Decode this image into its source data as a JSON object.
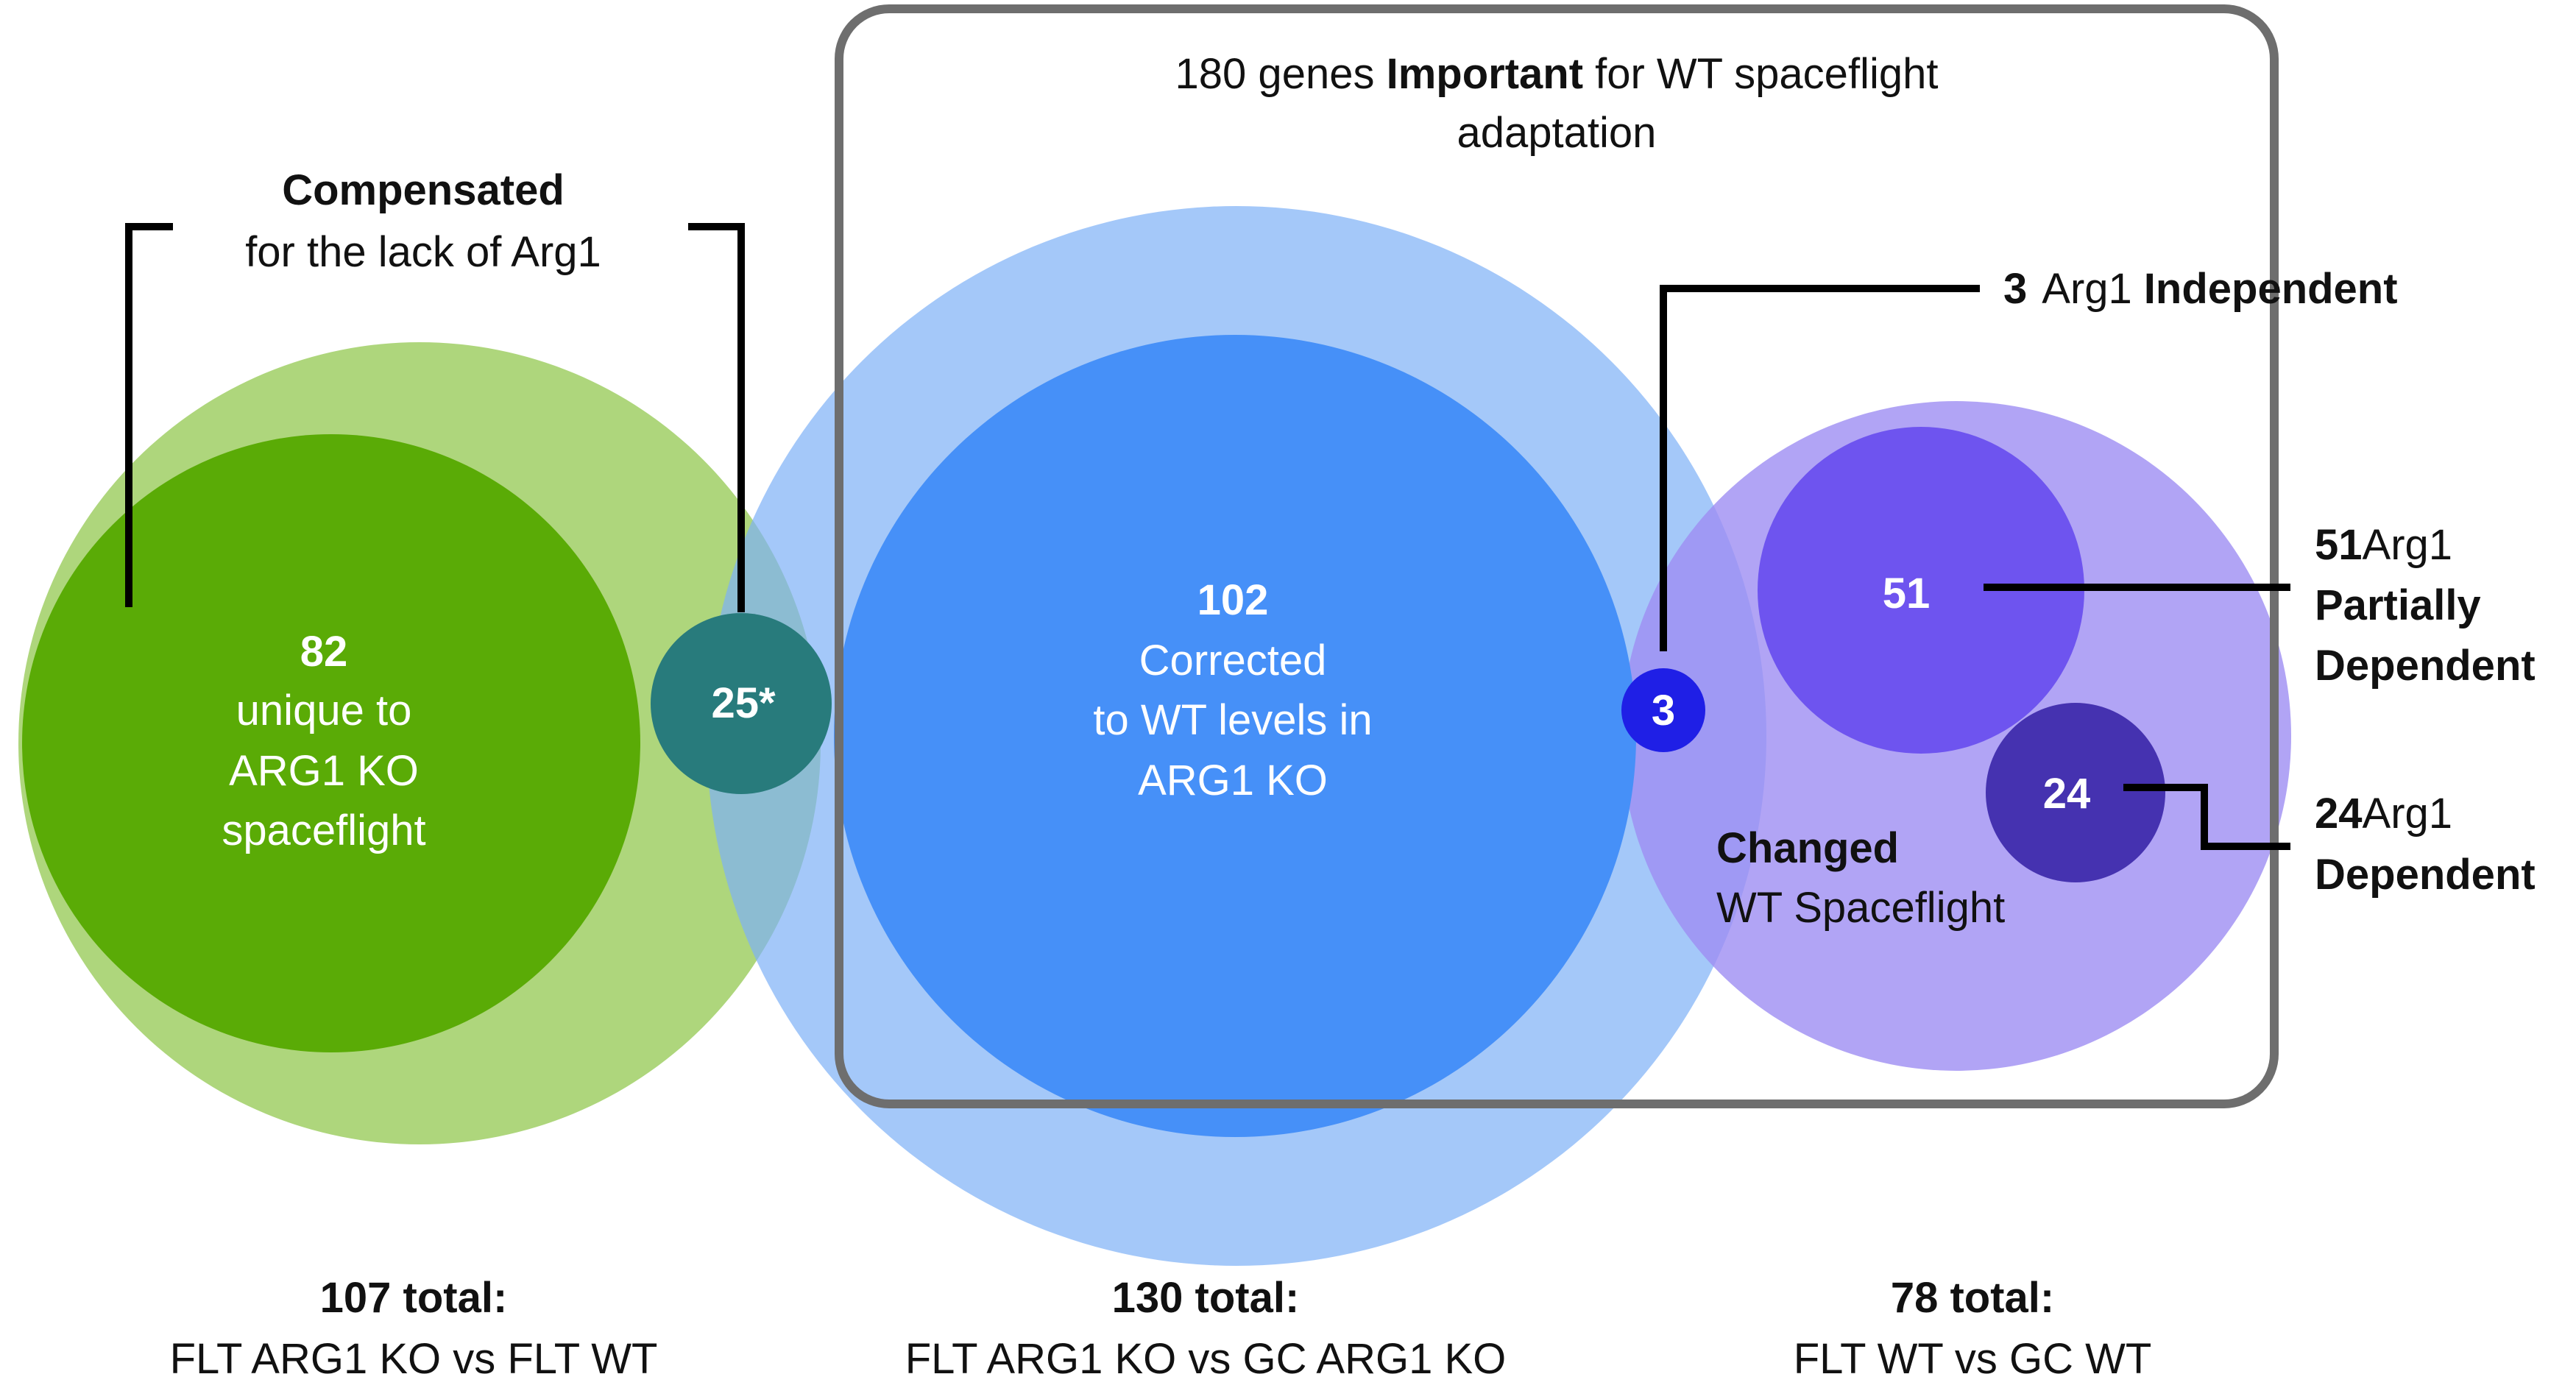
{
  "important_box": {
    "line1_pre": "180 genes ",
    "line1_bold": "Important",
    "line1_post": " for WT spaceflight",
    "line2": "adaptation"
  },
  "compensated": {
    "bold": "Compensated",
    "text": "for the lack of Arg1"
  },
  "green_inner": {
    "count": "82",
    "line1": "unique to",
    "line2": "ARG1 KO",
    "line3": "spaceflight"
  },
  "overlap_green_blue": {
    "label": "25*"
  },
  "blue_inner": {
    "count": "102",
    "line1": "Corrected",
    "line2": "to WT levels in",
    "line3": "ARG1 KO"
  },
  "overlap_blue_purple": {
    "label": "3"
  },
  "purple_partial": {
    "label": "51"
  },
  "purple_dependent": {
    "label": "24"
  },
  "purple_outer": {
    "bold": "Changed",
    "text": "WT Spaceflight"
  },
  "callouts": {
    "independent": {
      "count": "3",
      "mid": "Arg1",
      "bold": "Independent"
    },
    "partial": {
      "count": "51",
      "mid": "Arg1",
      "bold1": "Partially",
      "bold2": "Dependent"
    },
    "dependent": {
      "count": "24",
      "mid": "Arg1",
      "bold": "Dependent"
    }
  },
  "totals": [
    {
      "bold": "107 total:",
      "text": "FLT ARG1 KO vs FLT WT"
    },
    {
      "bold": "130 total:",
      "text": "FLT ARG1 KO vs GC ARG1 KO"
    },
    {
      "bold": "78 total:",
      "text": "FLT WT vs GC WT"
    }
  ],
  "colors": {
    "green_outer": "#a5d06a",
    "green_inner": "#5aab06",
    "overlap_teal": "#287b7c",
    "blue_outer": "#97bff7",
    "blue_inner": "#4690f8",
    "purple_outer": "#ac9ef4",
    "purple_partial": "#6e54ef",
    "purple_dependent": "#4532b0",
    "overlap_dark_blue": "#1f1fe6",
    "box_stroke": "#6e6e6e"
  }
}
